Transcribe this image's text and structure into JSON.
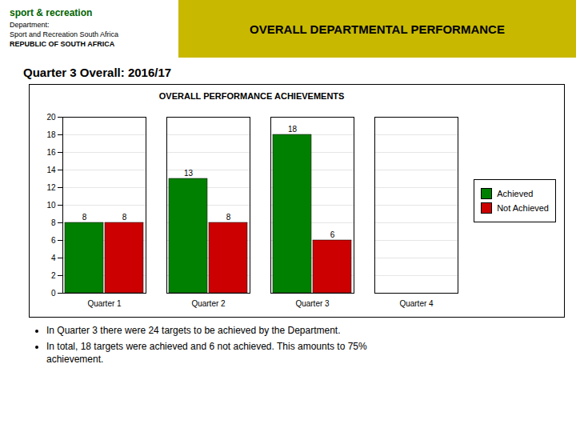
{
  "chart_data": {
    "type": "bar",
    "title": "OVERALL PERFORMANCE ACHIEVEMENTS",
    "categories": [
      "Quarter 1",
      "Quarter 2",
      "Quarter 3",
      "Quarter 4"
    ],
    "series": [
      {
        "name": "Achieved",
        "color": "#008000",
        "values": [
          8,
          13,
          18,
          0
        ]
      },
      {
        "name": "Not Achieved",
        "color": "#CC0000",
        "values": [
          8,
          8,
          6,
          0
        ]
      }
    ],
    "ylim": [
      0,
      20
    ],
    "yticks": [
      0,
      2,
      4,
      6,
      8,
      10,
      12,
      14,
      16,
      18,
      20
    ],
    "grid": true,
    "legend": "right",
    "data_labels": true,
    "annotations": [
      "sport & recreation",
      "Department:",
      "Sport and Recreation South Africa",
      "REPUBLIC OF SOUTH AFRICA",
      "OVERALL DEPARTMENTAL PERFORMANCE",
      "Quarter 3 Overall: 2016/17",
      "In Quarter 3 there were 24 targets to be achieved by the Department.",
      "In total, 18 targets were achieved and 6 not achieved. This amounts to 75%",
      "achievement."
    ]
  }
}
